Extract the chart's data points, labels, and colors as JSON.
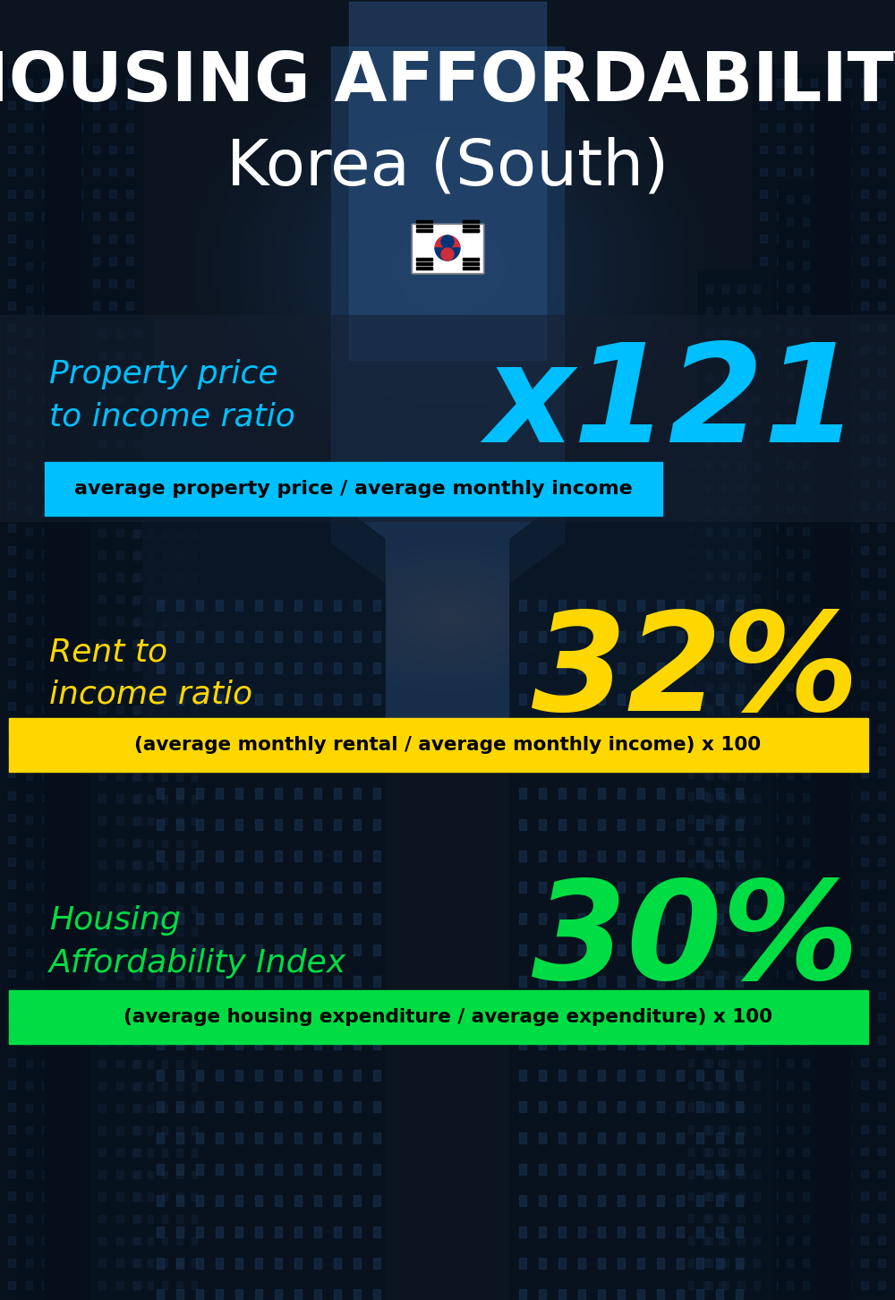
{
  "title_line1": "HOUSING AFFORDABILITY",
  "title_line2": "Korea (South)",
  "flag_text": "🇰🇷",
  "bg_color": "#0d1520",
  "title1_color": "#ffffff",
  "title2_color": "#ffffff",
  "section1_label": "Property price\nto income ratio",
  "section1_value": "x121",
  "section1_label_color": "#00bfff",
  "section1_value_color": "#00bfff",
  "section1_banner_text": "average property price / average monthly income",
  "section1_banner_bg": "#00bfff",
  "section1_banner_text_color": "#000000",
  "section2_label": "Rent to\nincome ratio",
  "section2_value": "32%",
  "section2_label_color": "#ffd700",
  "section2_value_color": "#ffd700",
  "section2_banner_text": "(average monthly rental / average monthly income) x 100",
  "section2_banner_bg": "#ffd700",
  "section2_banner_text_color": "#000000",
  "section3_label": "Housing\nAffordability Index",
  "section3_value": "30%",
  "section3_label_color": "#00dd44",
  "section3_value_color": "#00dd44",
  "section3_banner_text": "(average housing expenditure / average expenditure) x 100",
  "section3_banner_bg": "#00dd44",
  "section3_banner_text_color": "#000000",
  "fig_width": 10.0,
  "fig_height": 14.52
}
